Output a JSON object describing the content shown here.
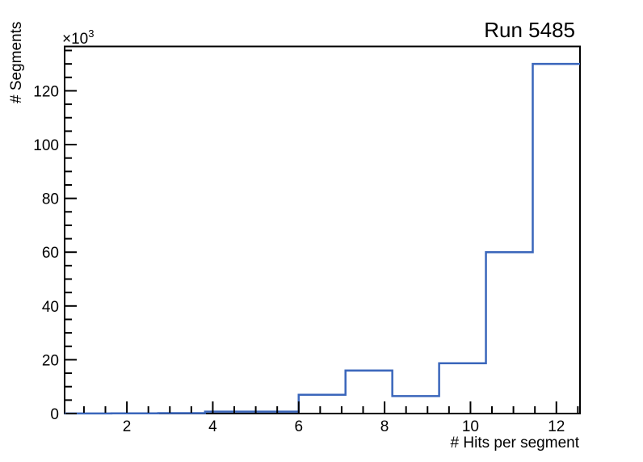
{
  "chart_data": {
    "type": "histogram-step",
    "title": "Run 5485",
    "xlabel": "# Hits per segment",
    "ylabel": "# Segments",
    "y_axis_exponent": {
      "base": "×10",
      "exp": "3"
    },
    "xlim": [
      0.55,
      12.55
    ],
    "ylim": [
      0,
      136.5
    ],
    "y_values_unit": "thousands",
    "bin_edges": [
      0.55,
      1.64,
      2.73,
      3.82,
      4.91,
      6.0,
      7.09,
      8.18,
      9.27,
      10.36,
      11.45,
      12.55
    ],
    "counts_thousands": [
      0.05,
      0.08,
      0.15,
      0.7,
      0.7,
      7.0,
      16.0,
      6.5,
      18.7,
      60.0,
      130.0
    ],
    "x_major_ticks": [
      2,
      4,
      6,
      8,
      10,
      12
    ],
    "x_minor_step": 0.5,
    "x_minor_start": 1.0,
    "x_minor_end": 12.5,
    "y_major_ticks": [
      0,
      20,
      40,
      60,
      80,
      100,
      120
    ],
    "y_minor_step": 5,
    "y_minor_end": 135,
    "grid": false,
    "legend": null,
    "line_color": "#3a66bb",
    "frame_color": "#000000",
    "background_color": "#ffffff"
  }
}
